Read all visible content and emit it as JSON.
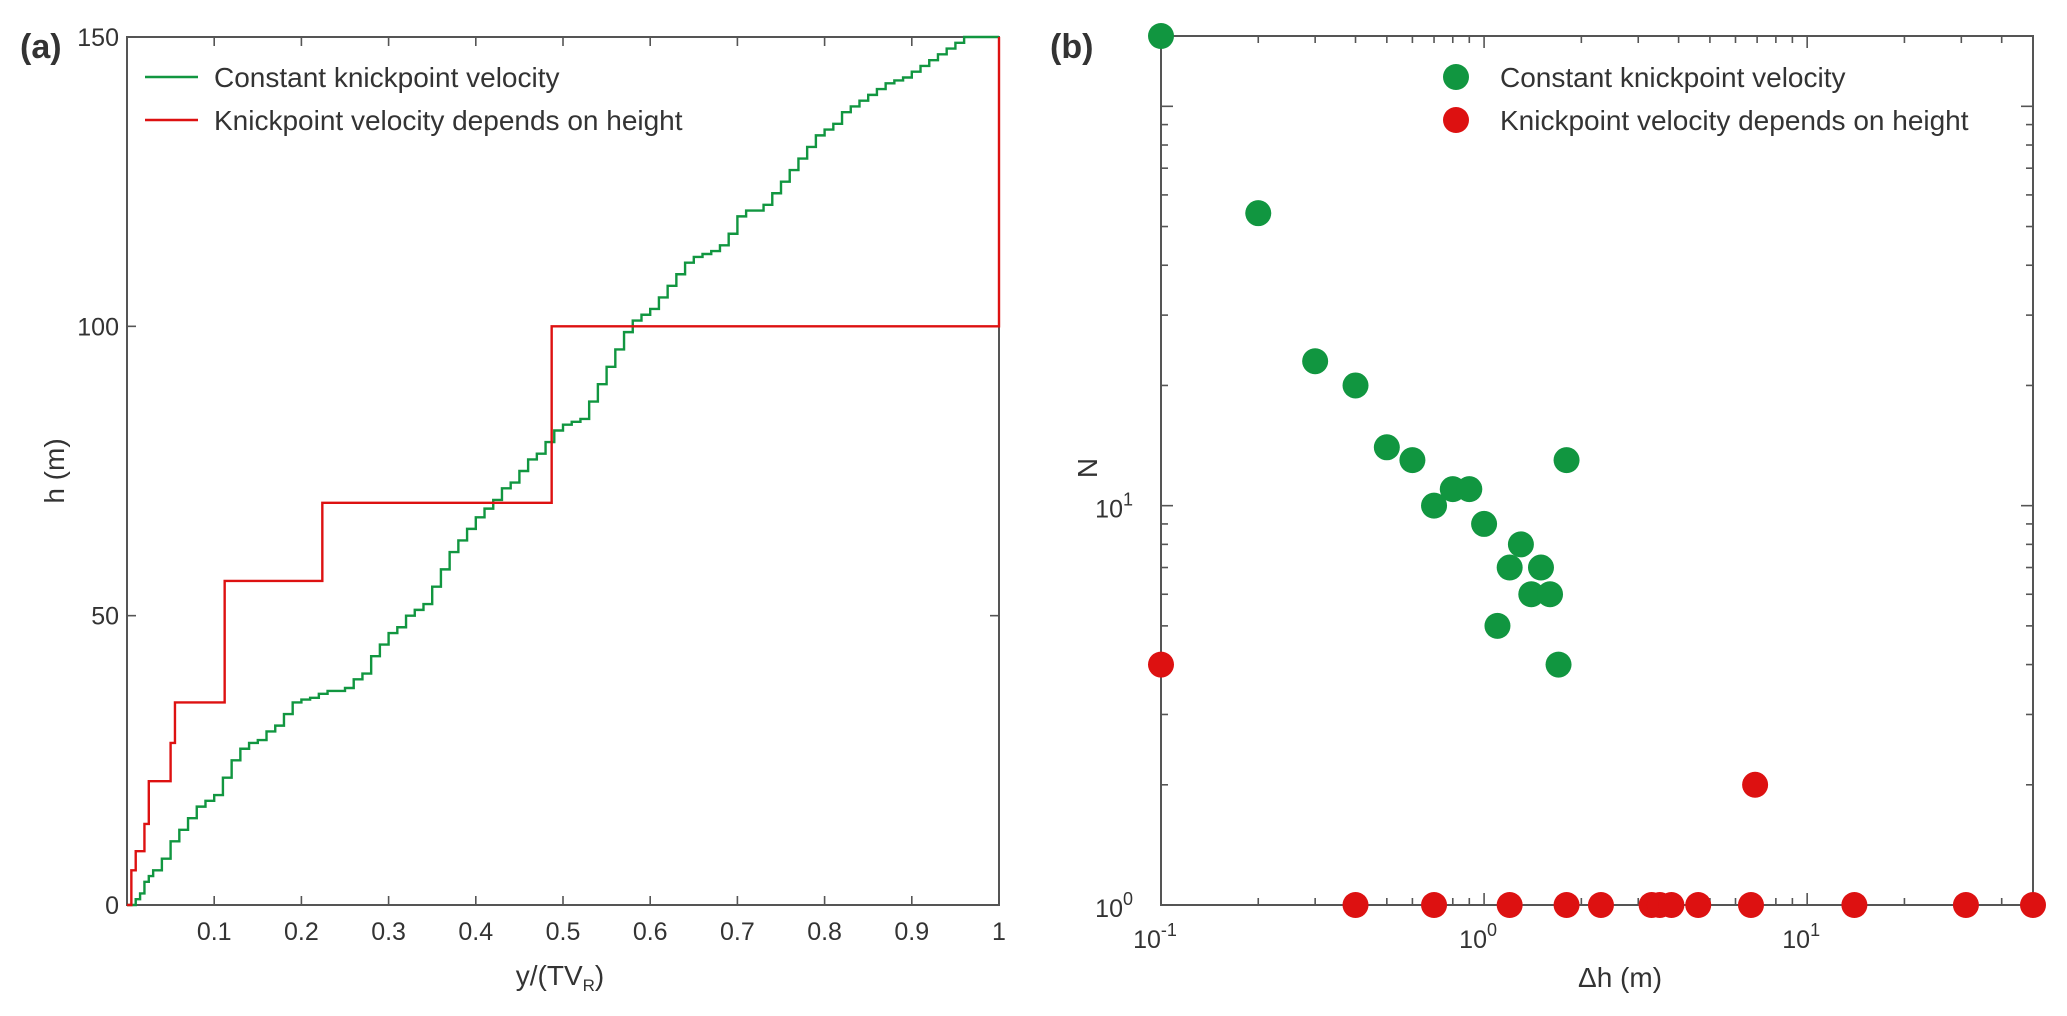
{
  "colors": {
    "constant": "#119640",
    "height": "#dd1111",
    "axis": "#555555",
    "text": "#333333"
  },
  "chart_data": [
    {
      "panel": "(a)",
      "type": "line",
      "step": true,
      "xlabel": "y/(TV",
      "xlabel_sub": "R",
      "xlabel_suffix": ")",
      "ylabel": "h (m)",
      "xlim": [
        0,
        1
      ],
      "ylim": [
        0,
        150
      ],
      "xticks": [
        0.1,
        0.2,
        0.3,
        0.4,
        0.5,
        0.6,
        0.7,
        0.8,
        0.9,
        1
      ],
      "xtick_labels": [
        "0.1",
        "0.2",
        "0.3",
        "0.4",
        "0.5",
        "0.6",
        "0.7",
        "0.8",
        "0.9",
        "1"
      ],
      "yticks": [
        0,
        50,
        100,
        150
      ],
      "ytick_labels": [
        "0",
        "50",
        "100",
        "150"
      ],
      "legend_position": "top-left",
      "series": [
        {
          "name": "Constant knickpoint velocity",
          "color": "#119640",
          "x": [
            0,
            0.01,
            0.015,
            0.02,
            0.025,
            0.03,
            0.04,
            0.05,
            0.06,
            0.07,
            0.08,
            0.09,
            0.1,
            0.11,
            0.12,
            0.13,
            0.14,
            0.15,
            0.16,
            0.17,
            0.18,
            0.19,
            0.2,
            0.21,
            0.22,
            0.23,
            0.24,
            0.25,
            0.26,
            0.27,
            0.28,
            0.29,
            0.3,
            0.31,
            0.32,
            0.33,
            0.34,
            0.35,
            0.36,
            0.37,
            0.38,
            0.39,
            0.4,
            0.41,
            0.42,
            0.43,
            0.44,
            0.45,
            0.46,
            0.47,
            0.48,
            0.49,
            0.5,
            0.51,
            0.52,
            0.53,
            0.54,
            0.55,
            0.56,
            0.57,
            0.58,
            0.59,
            0.6,
            0.61,
            0.62,
            0.63,
            0.64,
            0.65,
            0.66,
            0.67,
            0.68,
            0.69,
            0.7,
            0.71,
            0.72,
            0.73,
            0.74,
            0.75,
            0.76,
            0.77,
            0.78,
            0.79,
            0.8,
            0.81,
            0.82,
            0.83,
            0.84,
            0.85,
            0.86,
            0.87,
            0.88,
            0.89,
            0.9,
            0.91,
            0.92,
            0.93,
            0.94,
            0.95,
            0.96,
            0.97,
            0.98,
            0.99,
            1
          ],
          "y": [
            0,
            1,
            2,
            4,
            5,
            6,
            8,
            11,
            13,
            15,
            17,
            18,
            19,
            22,
            25,
            27,
            28,
            28.5,
            30,
            31,
            33,
            35,
            35.5,
            35.8,
            36.5,
            37,
            37,
            37.5,
            39,
            40,
            43,
            45,
            47,
            48,
            50,
            51,
            52,
            55,
            58,
            61,
            63,
            65,
            67,
            68.5,
            70,
            72,
            73,
            75,
            77,
            78,
            80,
            82,
            83,
            83.5,
            84,
            87,
            90,
            93,
            96,
            99,
            101,
            102,
            103,
            105,
            107,
            109,
            111,
            112,
            112.5,
            113,
            114,
            116,
            119,
            120,
            120,
            121,
            123,
            125,
            127,
            129,
            131,
            133,
            134,
            135,
            137,
            138,
            139,
            140,
            141,
            142,
            142.5,
            143,
            144,
            145,
            146,
            147,
            148,
            149,
            150,
            150,
            150,
            150,
            150
          ]
        },
        {
          "name": "Knickpoint velocity depends on height",
          "color": "#dd1111",
          "x": [
            0,
            0.005,
            0.01,
            0.02,
            0.025,
            0.03,
            0.05,
            0.055,
            0.112,
            0.224,
            0.487,
            1
          ],
          "y": [
            0,
            6,
            9.3,
            14,
            21.4,
            21.4,
            28,
            35,
            56,
            69.5,
            100,
            150
          ]
        }
      ]
    },
    {
      "panel": "(b)",
      "type": "scatter",
      "xlabel": "Δh (m)",
      "ylabel": "N",
      "xscale": "log",
      "yscale": "log",
      "xlim": [
        0.1,
        50
      ],
      "ylim": [
        1,
        150
      ],
      "xtick_labels": [
        {
          "base": "10",
          "exp": "-1",
          "value": 0.1
        },
        {
          "base": "10",
          "exp": "0",
          "value": 1
        },
        {
          "base": "10",
          "exp": "1",
          "value": 10
        }
      ],
      "ytick_labels": [
        {
          "base": "10",
          "exp": "0",
          "value": 1
        },
        {
          "base": "10",
          "exp": "1",
          "value": 10
        }
      ],
      "legend_position": "top-right",
      "series": [
        {
          "name": "Constant knickpoint velocity",
          "color": "#119640",
          "x": [
            0.1,
            0.2,
            0.3,
            0.4,
            0.5,
            0.6,
            0.7,
            0.8,
            0.9,
            1.0,
            1.1,
            1.2,
            1.3,
            1.4,
            1.5,
            1.6,
            1.7,
            1.8
          ],
          "y": [
            150,
            54,
            23,
            20,
            14,
            13,
            10,
            11,
            11,
            9,
            5,
            7,
            8,
            6,
            7,
            6,
            4,
            13
          ]
        },
        {
          "name": "Knickpoint velocity depends on height",
          "color": "#dd1111",
          "x": [
            0.1,
            0.4,
            0.7,
            1.2,
            1.8,
            2.3,
            3.3,
            3.5,
            3.8,
            4.6,
            6.7,
            6.9,
            14,
            31,
            50
          ],
          "y": [
            4,
            1,
            1,
            1,
            1,
            1,
            1,
            1,
            1,
            1,
            1,
            2,
            1,
            1,
            1
          ]
        }
      ]
    }
  ]
}
